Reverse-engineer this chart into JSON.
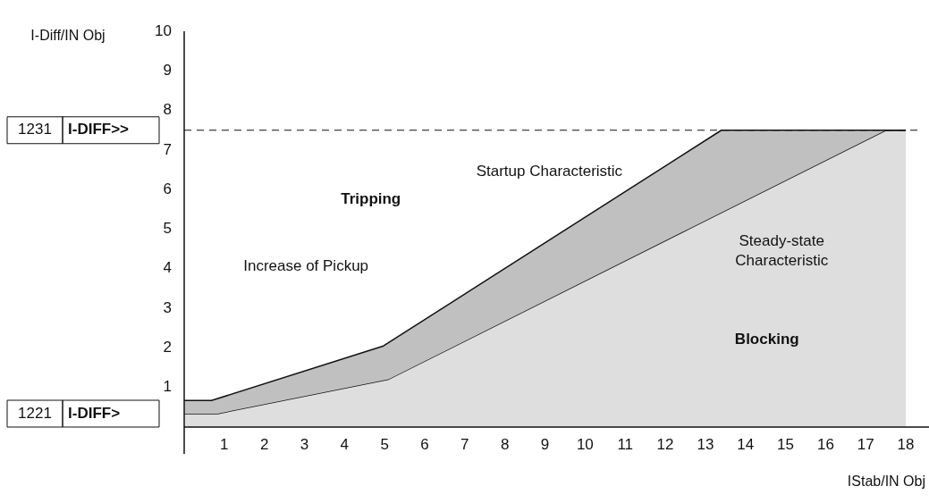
{
  "chart_data": {
    "type": "area",
    "xlabel": "IStab/IN Obj",
    "ylabel": "I-Diff/IN Obj",
    "xlim": [
      0,
      18.4
    ],
    "ylim": [
      0,
      10
    ],
    "xticks": [
      1,
      2,
      3,
      4,
      5,
      6,
      7,
      8,
      9,
      10,
      11,
      12,
      13,
      14,
      15,
      16,
      17,
      18
    ],
    "yticks": [
      1,
      2,
      3,
      4,
      5,
      6,
      7,
      8,
      9,
      10
    ],
    "grid": false,
    "legend": false,
    "marker": "none",
    "series": [
      {
        "color": "#c0c0c0",
        "x": [
          0,
          0.68,
          4.97,
          13.4,
          18
        ],
        "values": [
          0.67,
          0.67,
          2.05,
          7.5,
          7.5
        ]
      },
      {
        "color": "#dedede",
        "x": [
          0,
          0.84,
          5.1,
          17.5,
          18
        ],
        "values": [
          0.34,
          0.34,
          1.21,
          7.5,
          7.5
        ]
      }
    ],
    "ref_lines": [
      {
        "axis": "y",
        "value": 7.5,
        "label": "1231 I-DIFF>>",
        "line_style": "dashed"
      }
    ],
    "annotations": [
      "Tripping",
      "Blocking",
      "Startup Characteristic",
      "Steady-state Characteristic",
      "Increase of Pickup",
      "1221 I-DIFF>"
    ]
  }
}
